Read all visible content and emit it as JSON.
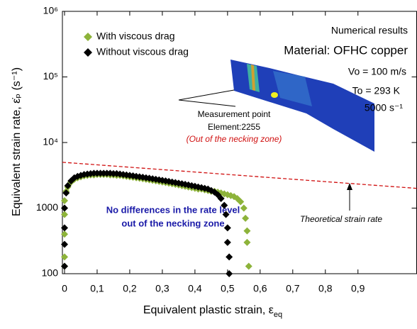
{
  "chart_data": {
    "type": "scatter",
    "x_label": "Equivalent plastic strain, ε",
    "x_label_sub": "eq",
    "y_label": "Equivalent strain rate, ε̇ₚ (s⁻¹)",
    "xlim": [
      -0.0065,
      1.08
    ],
    "ylim": [
      100,
      1000000
    ],
    "y_log": true,
    "xticks": [
      {
        "value": 0,
        "label": "0"
      },
      {
        "value": 0.1,
        "label": "0,1"
      },
      {
        "value": 0.2,
        "label": "0,2"
      },
      {
        "value": 0.3,
        "label": "0,3"
      },
      {
        "value": 0.4,
        "label": "0,4"
      },
      {
        "value": 0.5,
        "label": "0,5"
      },
      {
        "value": 0.6,
        "label": "0,6"
      },
      {
        "value": 0.7,
        "label": "0,7"
      },
      {
        "value": 0.8,
        "label": "0,8"
      },
      {
        "value": 0.9,
        "label": "0,9"
      }
    ],
    "yticks": [
      100,
      1000,
      {
        "value": 10000,
        "label": "10⁴"
      },
      {
        "value": 100000,
        "label": "10⁵"
      },
      {
        "value": 1000000,
        "label": "10⁶"
      }
    ],
    "series": [
      {
        "name": "With viscous drag",
        "color": "#8db33a",
        "x": [
          0,
          0,
          0,
          0,
          0,
          0.005,
          0.01,
          0.02,
          0.03,
          0.04,
          0.05,
          0.06,
          0.07,
          0.08,
          0.09,
          0.1,
          0.11,
          0.12,
          0.13,
          0.14,
          0.15,
          0.16,
          0.17,
          0.18,
          0.19,
          0.2,
          0.21,
          0.22,
          0.23,
          0.24,
          0.25,
          0.26,
          0.27,
          0.28,
          0.29,
          0.3,
          0.31,
          0.32,
          0.33,
          0.34,
          0.35,
          0.36,
          0.37,
          0.38,
          0.39,
          0.4,
          0.41,
          0.42,
          0.43,
          0.44,
          0.45,
          0.46,
          0.47,
          0.48,
          0.49,
          0.5,
          0.51,
          0.52,
          0.53,
          0.54,
          0.55,
          0.555,
          0.56,
          0.56,
          0.565
        ],
        "values": [
          130,
          180,
          400,
          800,
          1300,
          1800,
          2100,
          2500,
          2750,
          2900,
          3000,
          3100,
          3150,
          3200,
          3200,
          3250,
          3250,
          3250,
          3250,
          3200,
          3200,
          3150,
          3150,
          3100,
          3050,
          3000,
          2950,
          2900,
          2850,
          2800,
          2750,
          2700,
          2650,
          2600,
          2550,
          2500,
          2450,
          2400,
          2350,
          2300,
          2250,
          2200,
          2150,
          2100,
          2050,
          2000,
          1950,
          1950,
          1900,
          1850,
          1800,
          1800,
          1750,
          1700,
          1650,
          1600,
          1550,
          1500,
          1400,
          1250,
          1000,
          700,
          450,
          300,
          130
        ]
      },
      {
        "name": "Without viscous drag",
        "color": "#000000",
        "x": [
          0,
          0,
          0,
          0,
          0.005,
          0.01,
          0.02,
          0.03,
          0.04,
          0.05,
          0.06,
          0.07,
          0.08,
          0.09,
          0.1,
          0.11,
          0.12,
          0.13,
          0.14,
          0.15,
          0.16,
          0.17,
          0.18,
          0.19,
          0.2,
          0.21,
          0.22,
          0.23,
          0.24,
          0.25,
          0.26,
          0.27,
          0.28,
          0.29,
          0.3,
          0.31,
          0.32,
          0.33,
          0.34,
          0.35,
          0.36,
          0.37,
          0.38,
          0.39,
          0.4,
          0.41,
          0.42,
          0.43,
          0.44,
          0.45,
          0.46,
          0.47,
          0.48,
          0.49,
          0.495,
          0.5,
          0.5,
          0.505,
          0.505
        ],
        "values": [
          130,
          280,
          500,
          1000,
          1700,
          2200,
          2600,
          2900,
          3050,
          3150,
          3250,
          3300,
          3350,
          3400,
          3400,
          3400,
          3400,
          3400,
          3400,
          3350,
          3350,
          3300,
          3250,
          3200,
          3150,
          3100,
          3050,
          3000,
          2950,
          2900,
          2850,
          2800,
          2750,
          2700,
          2650,
          2600,
          2550,
          2500,
          2450,
          2400,
          2350,
          2300,
          2250,
          2200,
          2150,
          2100,
          2050,
          2000,
          1950,
          1850,
          1750,
          1600,
          1400,
          1100,
          800,
          500,
          300,
          180,
          100
        ]
      }
    ],
    "theoretical": {
      "x": [
        -0.0065,
        1.08
      ],
      "values": [
        5000,
        2000
      ],
      "color": "#d01010",
      "label": "Theoretical strain rate"
    },
    "annotations": {
      "numerical": "Numerical results",
      "material": "Material: OFHC copper",
      "vo": "Vo = 100 m/s",
      "to": "To = 293 K",
      "rate": "5000 s⁻¹",
      "measurement": "Measurement point",
      "element": "Element:2255",
      "out_zone": "(Out of the necking zone)",
      "no_diff_1": "No differences in the rate level",
      "no_diff_2": "out of the necking zone"
    }
  }
}
